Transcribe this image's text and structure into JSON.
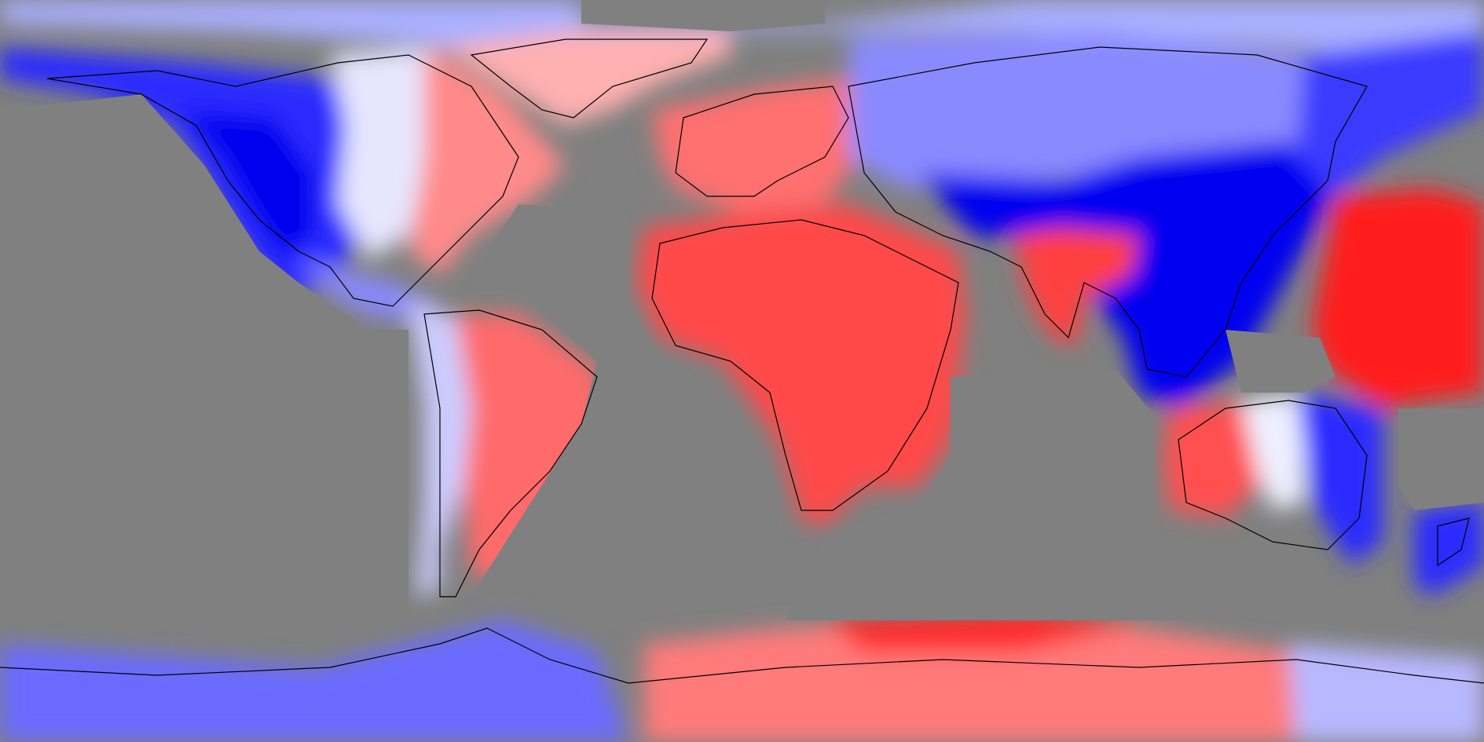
{
  "map": {
    "projection": "equirectangular",
    "extent": {
      "lon": [
        -180,
        180
      ],
      "lat": [
        -90,
        90
      ]
    },
    "background_color": "#808080",
    "coastline_color": "#000000",
    "color_scale": {
      "negative": "#0000ff",
      "neutral": "#ffffff",
      "positive": "#ff0000",
      "bands": 10
    },
    "text_labels": []
  }
}
